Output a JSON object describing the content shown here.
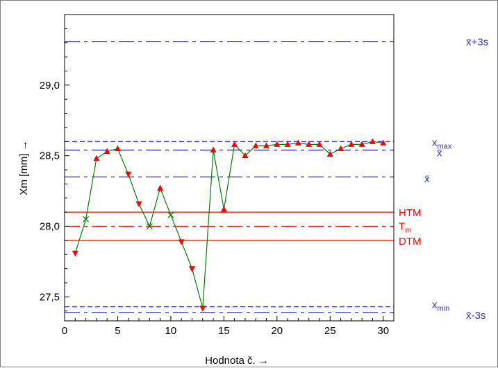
{
  "chart_data": {
    "type": "line",
    "xlabel": "Hodnota č. →",
    "ylabel": "Xm [mm] →",
    "xlim": [
      0,
      31
    ],
    "ylim": [
      27.33,
      29.5
    ],
    "x_ticks": [
      "0",
      "5",
      "10",
      "15",
      "20",
      "25",
      "30"
    ],
    "y_ticks": [
      "27,5",
      "28,0",
      "28,5",
      "29,0"
    ],
    "colors": {
      "line": "#008000",
      "marker": "#ff0000",
      "cross": "#008000",
      "blue_lines": "#3232c8",
      "red_lines": "#ff0000"
    },
    "series": [
      {
        "x": [
          1,
          2,
          3,
          4,
          5,
          6,
          7,
          8,
          9,
          10,
          11,
          12,
          13,
          14,
          15,
          16,
          17,
          18,
          19,
          20,
          21,
          22,
          23,
          24,
          25,
          26,
          27,
          28,
          29,
          30
        ],
        "y": [
          27.81,
          28.05,
          28.48,
          28.53,
          28.55,
          28.37,
          28.16,
          28.0,
          28.27,
          28.08,
          27.89,
          27.7,
          27.42,
          28.54,
          28.12,
          28.58,
          28.5,
          28.57,
          28.57,
          28.58,
          28.58,
          28.59,
          28.58,
          28.58,
          28.51,
          28.55,
          28.58,
          28.58,
          28.6,
          28.59
        ],
        "markers": [
          "down",
          "cross",
          "up",
          "up",
          "up",
          "down",
          "down",
          "cross",
          "up",
          "cross",
          "down",
          "down",
          "down",
          "up",
          "up",
          "up",
          "up",
          "up",
          "up",
          "up",
          "up",
          "up",
          "up",
          "up",
          "up",
          "up",
          "up",
          "up",
          "up",
          "up"
        ]
      }
    ],
    "reference_lines": [
      {
        "key": "ucl",
        "value": 29.31,
        "color": "#3232c8",
        "style": "dashdot",
        "label": "x̄+3s"
      },
      {
        "key": "xmax",
        "value": 28.6,
        "color": "#3232c8",
        "style": "dashed",
        "label": "x",
        "sub": "max"
      },
      {
        "key": "xbar_upper",
        "value": 28.54,
        "color": "#3232c8",
        "style": "dashdot",
        "label": "x̄"
      },
      {
        "key": "xbar",
        "value": 28.35,
        "color": "#3232c8",
        "style": "dashdot",
        "label": "x̄"
      },
      {
        "key": "htm",
        "value": 28.1,
        "color": "#ff0000",
        "style": "solid",
        "label": "HTM"
      },
      {
        "key": "tm",
        "value": 28.0,
        "color": "#ff0000",
        "style": "dashdot",
        "label": "T",
        "sub": "m"
      },
      {
        "key": "dtm",
        "value": 27.9,
        "color": "#ff0000",
        "style": "solid",
        "label": "DTM"
      },
      {
        "key": "xmin",
        "value": 27.43,
        "color": "#3232c8",
        "style": "dashed",
        "label": "x",
        "sub": "min"
      },
      {
        "key": "lcl",
        "value": 27.39,
        "color": "#3232c8",
        "style": "dashdot",
        "label": "x̄-3s"
      }
    ]
  }
}
